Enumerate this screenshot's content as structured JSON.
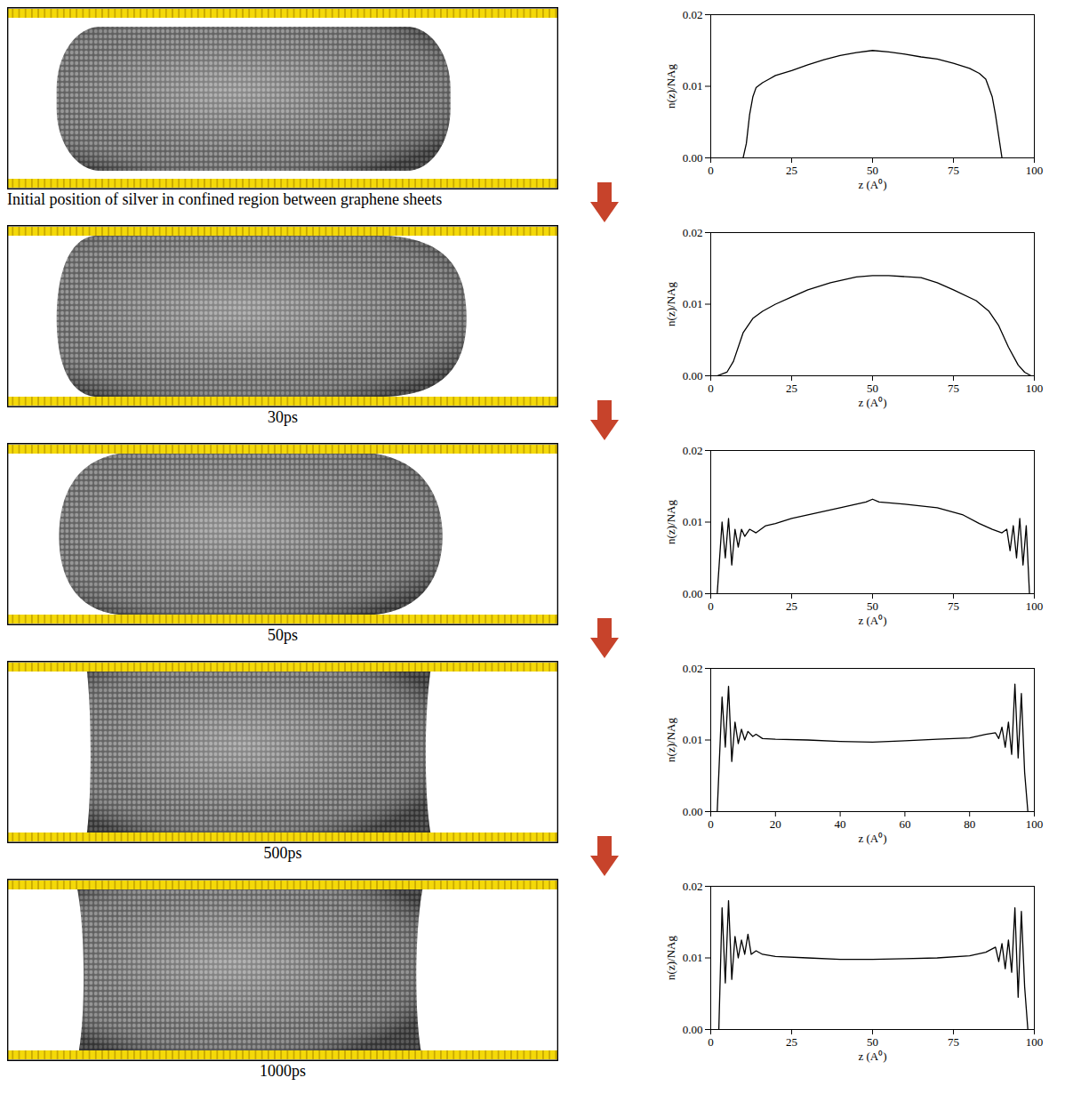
{
  "snapshots": [
    {
      "caption": "Initial position of silver in confined region between graphene sheets"
    },
    {
      "caption": "30ps"
    },
    {
      "caption": "50ps"
    },
    {
      "caption": "500ps"
    },
    {
      "caption": "1000ps"
    }
  ],
  "chart_data": [
    {
      "type": "line",
      "x_label": "z (A⁰)",
      "y_label": "n(z)/NAg",
      "color": "#000000",
      "xlim": [
        0,
        100
      ],
      "ylim": [
        0,
        0.02
      ],
      "xticks": [
        0,
        25,
        50,
        75,
        100
      ],
      "yticks": [
        {
          "value": 0,
          "label": "0.00"
        },
        {
          "value": 0.01,
          "label": "0.01"
        },
        {
          "value": 0.02,
          "label": "0.02"
        }
      ],
      "x": [
        10,
        11,
        12,
        13,
        14,
        16,
        18,
        20,
        25,
        30,
        35,
        40,
        45,
        50,
        55,
        60,
        65,
        70,
        75,
        80,
        83,
        85,
        87,
        88,
        89,
        90
      ],
      "values": [
        0,
        0.002,
        0.006,
        0.0085,
        0.0098,
        0.0105,
        0.011,
        0.0115,
        0.0122,
        0.013,
        0.0137,
        0.0143,
        0.0147,
        0.015,
        0.0148,
        0.0145,
        0.0141,
        0.0138,
        0.0132,
        0.0125,
        0.0118,
        0.011,
        0.0085,
        0.006,
        0.003,
        0
      ]
    },
    {
      "type": "line",
      "x_label": "z (A⁰)",
      "y_label": "n(z)/NAg",
      "color": "#000000",
      "xlim": [
        0,
        100
      ],
      "ylim": [
        0,
        0.02
      ],
      "xticks": [
        0,
        25,
        50,
        75,
        100
      ],
      "yticks": [
        {
          "value": 0,
          "label": "0.00"
        },
        {
          "value": 0.01,
          "label": "0.01"
        },
        {
          "value": 0.02,
          "label": "0.02"
        }
      ],
      "x": [
        2,
        5,
        7,
        10,
        13,
        16,
        20,
        25,
        30,
        37,
        45,
        50,
        55,
        65,
        70,
        75,
        82,
        86,
        89,
        92,
        95,
        97,
        99
      ],
      "values": [
        0,
        0.0005,
        0.002,
        0.006,
        0.008,
        0.009,
        0.01,
        0.011,
        0.012,
        0.013,
        0.0138,
        0.014,
        0.014,
        0.0137,
        0.013,
        0.012,
        0.0105,
        0.009,
        0.007,
        0.004,
        0.0015,
        0.0005,
        0
      ]
    },
    {
      "type": "line",
      "x_label": "z (A⁰)",
      "y_label": "n(z)/NAg",
      "color": "#000000",
      "xlim": [
        0,
        100
      ],
      "ylim": [
        0,
        0.02
      ],
      "xticks": [
        0,
        25,
        50,
        75,
        100
      ],
      "yticks": [
        {
          "value": 0,
          "label": "0.00"
        },
        {
          "value": 0.01,
          "label": "0.01"
        },
        {
          "value": 0.02,
          "label": "0.02"
        }
      ],
      "x": [
        2,
        3.5,
        4.5,
        5.5,
        6.5,
        7.5,
        8.5,
        9.5,
        10.5,
        12,
        14,
        17,
        20,
        25,
        30,
        40,
        48,
        50,
        52,
        60,
        70,
        78,
        83,
        87,
        90,
        91.5,
        92.5,
        93.5,
        94.5,
        95.5,
        96.5,
        97.5,
        98.5
      ],
      "values": [
        0,
        0.01,
        0.005,
        0.0105,
        0.004,
        0.009,
        0.0065,
        0.009,
        0.008,
        0.009,
        0.0085,
        0.0095,
        0.0098,
        0.0105,
        0.011,
        0.012,
        0.0128,
        0.0132,
        0.0128,
        0.0125,
        0.012,
        0.011,
        0.0098,
        0.009,
        0.0085,
        0.009,
        0.006,
        0.0095,
        0.005,
        0.0105,
        0.004,
        0.0095,
        0
      ]
    },
    {
      "type": "line",
      "x_label": "z (A⁰)",
      "y_label": "n(z)/NAg",
      "color": "#000000",
      "xlim": [
        0,
        100
      ],
      "ylim": [
        0,
        0.02
      ],
      "xticks": [
        0,
        20,
        40,
        60,
        80,
        100
      ],
      "yticks": [
        {
          "value": 0,
          "label": "0.00"
        },
        {
          "value": 0.01,
          "label": "0.01"
        },
        {
          "value": 0.02,
          "label": "0.02"
        }
      ],
      "x": [
        2,
        3.5,
        4.5,
        5.5,
        6.5,
        7.5,
        8.5,
        9.5,
        10.5,
        11.5,
        13,
        14,
        16,
        20,
        30,
        40,
        50,
        60,
        70,
        80,
        85,
        88,
        89,
        90,
        91,
        92,
        93,
        94,
        95,
        96,
        97,
        98
      ],
      "values": [
        0,
        0.016,
        0.009,
        0.0175,
        0.007,
        0.0125,
        0.0095,
        0.0115,
        0.01,
        0.0112,
        0.0105,
        0.0108,
        0.0102,
        0.0101,
        0.01,
        0.0098,
        0.0097,
        0.0099,
        0.0101,
        0.0103,
        0.0108,
        0.011,
        0.0102,
        0.0118,
        0.009,
        0.0125,
        0.008,
        0.0178,
        0.0075,
        0.0165,
        0.0055,
        0
      ]
    },
    {
      "type": "line",
      "x_label": "z (A⁰)",
      "y_label": "n(z)/NAg",
      "color": "#000000",
      "xlim": [
        0,
        100
      ],
      "ylim": [
        0,
        0.02
      ],
      "xticks": [
        0,
        25,
        50,
        75,
        100
      ],
      "yticks": [
        {
          "value": 0,
          "label": "0.00"
        },
        {
          "value": 0.01,
          "label": "0.01"
        },
        {
          "value": 0.02,
          "label": "0.02"
        }
      ],
      "x": [
        2.5,
        3.5,
        4.5,
        5.5,
        6.5,
        7.5,
        8.5,
        9.5,
        10.5,
        11.5,
        12.5,
        14,
        16,
        20,
        30,
        40,
        50,
        60,
        70,
        80,
        85,
        88,
        89,
        90,
        91,
        92,
        93,
        94,
        95,
        96,
        97,
        98
      ],
      "values": [
        0,
        0.017,
        0.0065,
        0.018,
        0.007,
        0.013,
        0.01,
        0.0125,
        0.0105,
        0.0133,
        0.0105,
        0.011,
        0.0105,
        0.0102,
        0.01,
        0.0098,
        0.0098,
        0.0099,
        0.01,
        0.0103,
        0.0108,
        0.0115,
        0.0095,
        0.012,
        0.0085,
        0.0125,
        0.008,
        0.017,
        0.0045,
        0.0165,
        0.006,
        0
      ]
    }
  ]
}
